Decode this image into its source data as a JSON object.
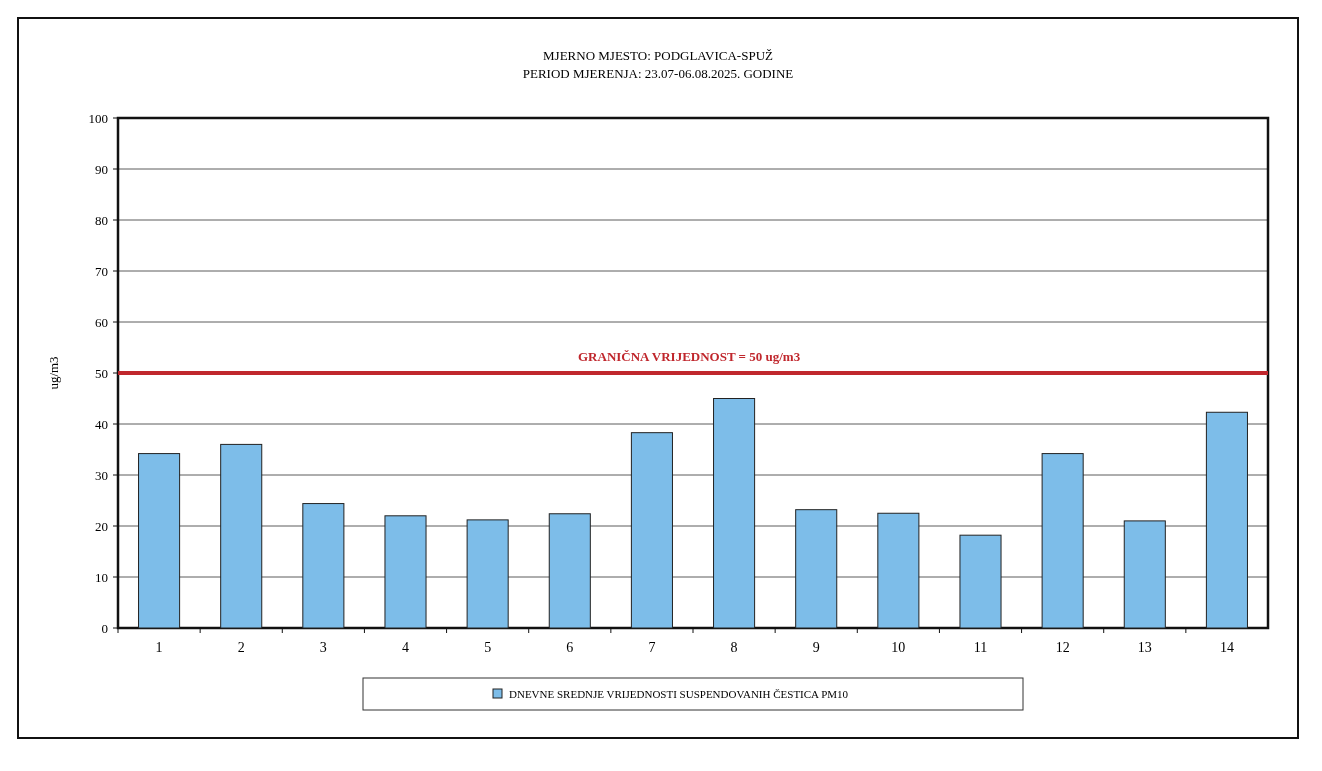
{
  "chart_data": {
    "type": "bar",
    "title": "MJERNO MJESTO: PODGLAVICA-SPUŽ",
    "subtitle": "PERIOD MJERENJA: 23.07-06.08.2025. GODINE",
    "ylabel": "ug/m3",
    "categories": [
      "1",
      "2",
      "3",
      "4",
      "5",
      "6",
      "7",
      "8",
      "9",
      "10",
      "11",
      "12",
      "13",
      "14"
    ],
    "series": [
      {
        "name": "DNEVNE SREDNJE VRIJEDNOSTI SUSPENDOVANIH ČESTICA PM10",
        "color": "#7dbde9",
        "values": [
          34.2,
          36,
          24.4,
          22,
          21.2,
          22.4,
          38.3,
          45,
          23.2,
          22.5,
          18.2,
          34.2,
          21,
          42.3
        ]
      }
    ],
    "ylim": [
      0,
      100
    ],
    "yticks": [
      0,
      10,
      20,
      30,
      40,
      50,
      60,
      70,
      80,
      90,
      100
    ],
    "grid": "y",
    "legend": "bottom",
    "ref_lines": [
      {
        "axis": "y",
        "value": 50,
        "label": "GRANIČNA VRIJEDNOST = 50 ug/m3",
        "color": "#c0272d"
      }
    ]
  }
}
